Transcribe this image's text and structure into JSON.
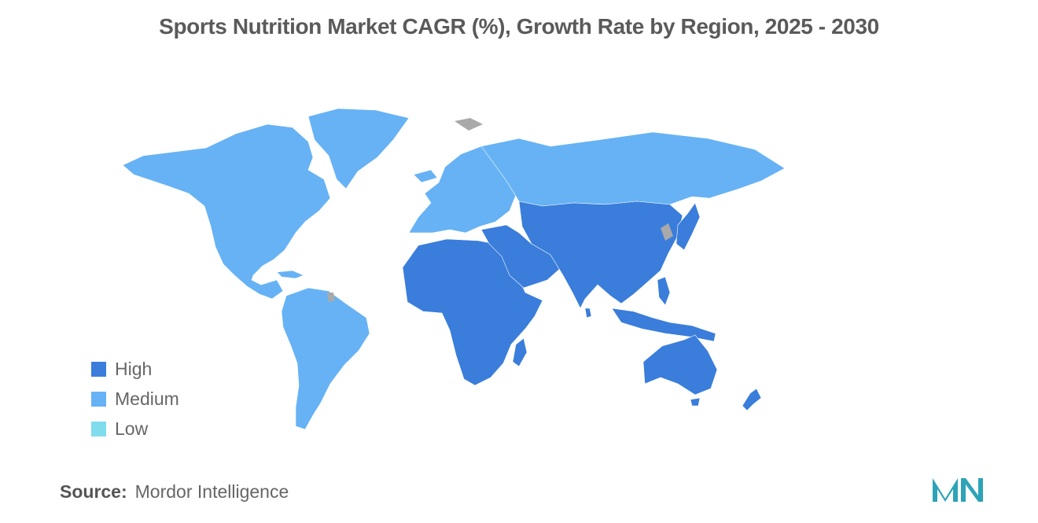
{
  "title": "Sports Nutrition Market CAGR (%), Growth Rate by Region, 2025 - 2030",
  "legend": [
    {
      "label": "High",
      "color": "#3a7ddb"
    },
    {
      "label": "Medium",
      "color": "#66b2f5"
    },
    {
      "label": "Low",
      "color": "#7fdcec"
    }
  ],
  "no_data_color": "#a9a9a9",
  "regions": [
    {
      "region": "North America",
      "level": "Medium"
    },
    {
      "region": "South America",
      "level": "Medium"
    },
    {
      "region": "Europe",
      "level": "Medium"
    },
    {
      "region": "Asia-Pacific",
      "level": "High"
    },
    {
      "region": "Middle East and Africa",
      "level": "High"
    }
  ],
  "source": {
    "label": "Source:",
    "text": "Mordor Intelligence"
  },
  "logo": {
    "icon": "mordor-intelligence-logo",
    "color": "#2ea3b8"
  }
}
